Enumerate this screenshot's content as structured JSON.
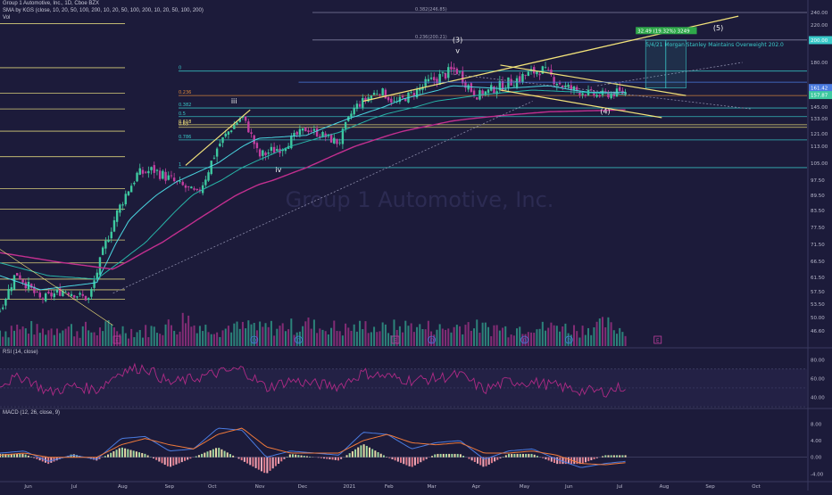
{
  "header": {
    "title": "Group 1 Automotive, Inc., 1D, Cboe BZX",
    "sma_line": "SMA by KGS (close, 10, 20, 50, 100, 200, 10, 20, 50, 100, 200, 10, 20, 50, 100, 200)",
    "vol_label": "Vol"
  },
  "watermark": "Group 1 Automotive, Inc.",
  "colors": {
    "background": "#1c1b3a",
    "up_candle": "#3ec9a0",
    "down_candle": "#c23fa0",
    "trendline": "#f3e37a",
    "fib_line": "#d8cf7a",
    "teal_line": "#39c9c9",
    "blue_line": "#4a7be0",
    "sma_teal": "#27b5a8",
    "sma_cyan": "#4ad6e0",
    "sma_magenta": "#c22f8f",
    "rsi_line": "#b02a86",
    "macd_line": "#4a7be0",
    "signal_line": "#f07a3a"
  },
  "chart_data": [
    {
      "type": "candlestick",
      "x_ticks": [
        "Jun",
        "Jul",
        "Aug",
        "Sep",
        "Oct",
        "Nov",
        "Dec",
        "2021",
        "Feb",
        "Mar",
        "Apr",
        "May",
        "Jun",
        "Jul",
        "Aug",
        "Sep",
        "Oct"
      ],
      "y_ticks": [
        46.6,
        50.0,
        53.5,
        57.5,
        61.5,
        66.5,
        71.5,
        77.5,
        83.5,
        89.5,
        97.5,
        105.0,
        113.0,
        121.0,
        133.0,
        145.0,
        160.0,
        180.0,
        200.0,
        220.0,
        240.0
      ],
      "y_scale": "log",
      "price_labels": [
        {
          "value": 200.0,
          "text": "200.00",
          "color": "#39c9c9"
        },
        {
          "value": 161.42,
          "text": "161.42",
          "color": "#4a7be0"
        },
        {
          "value": 157.87,
          "text": "157.87",
          "color": "#3ec9a0"
        }
      ],
      "key_prices": [
        {
          "t": 0.0,
          "v": 52
        },
        {
          "t": 0.02,
          "v": 63
        },
        {
          "t": 0.05,
          "v": 55
        },
        {
          "t": 0.08,
          "v": 58
        },
        {
          "t": 0.11,
          "v": 55
        },
        {
          "t": 0.14,
          "v": 79
        },
        {
          "t": 0.17,
          "v": 100
        },
        {
          "t": 0.19,
          "v": 102
        },
        {
          "t": 0.21,
          "v": 98
        },
        {
          "t": 0.245,
          "v": 90
        },
        {
          "t": 0.27,
          "v": 113
        },
        {
          "t": 0.3,
          "v": 135
        },
        {
          "t": 0.32,
          "v": 108
        },
        {
          "t": 0.35,
          "v": 113
        },
        {
          "t": 0.38,
          "v": 125
        },
        {
          "t": 0.42,
          "v": 115
        },
        {
          "t": 0.44,
          "v": 145
        },
        {
          "t": 0.47,
          "v": 160
        },
        {
          "t": 0.49,
          "v": 148
        },
        {
          "t": 0.53,
          "v": 165
        },
        {
          "t": 0.565,
          "v": 175
        },
        {
          "t": 0.59,
          "v": 155
        },
        {
          "t": 0.63,
          "v": 165
        },
        {
          "t": 0.67,
          "v": 175
        },
        {
          "t": 0.7,
          "v": 162
        },
        {
          "t": 0.74,
          "v": 155
        },
        {
          "t": 0.77,
          "v": 158
        },
        {
          "t": 0.775,
          "v": 157.87
        }
      ],
      "sma_series": [
        {
          "key_points": [
            [
              0.0,
              62
            ],
            [
              0.05,
              58
            ],
            [
              0.12,
              60
            ],
            [
              0.16,
              80
            ],
            [
              0.22,
              97
            ],
            [
              0.27,
              105
            ],
            [
              0.32,
              118
            ],
            [
              0.38,
              120
            ],
            [
              0.44,
              135
            ],
            [
              0.5,
              152
            ],
            [
              0.56,
              163
            ],
            [
              0.62,
              161
            ],
            [
              0.68,
              163
            ],
            [
              0.73,
              158
            ],
            [
              0.775,
              158
            ]
          ],
          "color": "#4ad6e0"
        },
        {
          "key_points": [
            [
              0.0,
              66
            ],
            [
              0.06,
              62
            ],
            [
              0.12,
              61
            ],
            [
              0.18,
              72
            ],
            [
              0.24,
              90
            ],
            [
              0.3,
              103
            ],
            [
              0.36,
              113
            ],
            [
              0.42,
              122
            ],
            [
              0.48,
              138
            ],
            [
              0.54,
              150
            ],
            [
              0.6,
              156
            ],
            [
              0.66,
              160
            ],
            [
              0.72,
              158
            ],
            [
              0.775,
              156
            ]
          ],
          "color": "#27b5a8"
        },
        {
          "key_points": [
            [
              0.0,
              69
            ],
            [
              0.08,
              66
            ],
            [
              0.14,
              64
            ],
            [
              0.2,
              72
            ],
            [
              0.26,
              83
            ],
            [
              0.32,
              95
            ],
            [
              0.38,
              103
            ],
            [
              0.44,
              113
            ],
            [
              0.5,
              123
            ],
            [
              0.56,
              131
            ],
            [
              0.62,
              136
            ],
            [
              0.68,
              140
            ],
            [
              0.73,
              141
            ],
            [
              0.775,
              142
            ]
          ],
          "color": "#c22f8f"
        }
      ],
      "annotations": [
        {
          "text": "(3)",
          "t": 0.567,
          "v": 198
        },
        {
          "text": "v",
          "t": 0.567,
          "v": 188
        },
        {
          "text": "(4)",
          "t": 0.75,
          "v": 138
        },
        {
          "text": "(5)",
          "t": 0.89,
          "v": 213
        },
        {
          "text": "iii",
          "t": 0.29,
          "v": 148
        },
        {
          "text": "iv",
          "t": 0.345,
          "v": 101
        },
        {
          "text": "5/4/21 Morgan Stanley Maintains Overweight 202.0",
          "t": 0.8,
          "v": 194
        },
        {
          "text": "32.49 (19.32%) 3249",
          "t": 0.79,
          "v": 210
        }
      ],
      "fib_levels": [
        {
          "label": "0",
          "value": 173.5
        },
        {
          "label": "0.236",
          "value": 155
        },
        {
          "label": "0.382",
          "value": 144
        },
        {
          "label": "0.5",
          "value": 135
        },
        {
          "label": "0.618",
          "value": 128
        },
        {
          "label": "0.65",
          "value": 126
        },
        {
          "label": "0.786",
          "value": 117
        },
        {
          "label": "1",
          "value": 103
        },
        {
          "label": "0.236(200.21)",
          "value": 200.2
        },
        {
          "label": "0.382(246.85)",
          "value": 245
        }
      ]
    },
    {
      "type": "bar",
      "title": "Vol",
      "description_values": "volume histogram",
      "values": [
        0.35,
        0.5,
        0.4,
        0.45,
        0.3,
        0.4,
        0.55,
        0.45,
        0.35,
        0.4,
        0.3,
        0.5,
        0.45,
        0.4,
        0.35,
        0.3,
        0.4,
        0.45,
        0.6,
        0.5,
        0.95,
        0.6,
        0.45,
        0.5,
        0.4,
        0.55,
        0.45,
        0.6,
        0.4,
        0.5,
        0.45,
        0.55,
        0.5,
        0.7,
        0.55,
        0.45,
        0.5,
        0.4,
        0.45,
        0.5,
        0.55,
        0.45,
        0.4,
        0.5,
        0.55,
        0.6,
        0.45,
        0.5,
        0.4,
        0.45,
        0.55,
        0.65,
        0.5,
        0.45,
        0.5,
        0.4,
        0.45,
        0.5,
        0.55,
        0.45,
        0.5,
        0.6,
        0.45,
        0.4,
        0.5,
        0.55,
        0.65,
        0.45,
        0.4
      ]
    },
    {
      "type": "line",
      "title": "RSI (14, close)",
      "y_ticks": [
        80.0,
        60.0,
        40.0
      ],
      "guides": [
        70,
        50,
        30
      ],
      "key_points": [
        [
          0.0,
          55
        ],
        [
          0.03,
          62
        ],
        [
          0.06,
          45
        ],
        [
          0.09,
          52
        ],
        [
          0.12,
          48
        ],
        [
          0.15,
          68
        ],
        [
          0.18,
          72
        ],
        [
          0.21,
          55
        ],
        [
          0.24,
          60
        ],
        [
          0.27,
          66
        ],
        [
          0.3,
          70
        ],
        [
          0.33,
          50
        ],
        [
          0.36,
          58
        ],
        [
          0.39,
          54
        ],
        [
          0.42,
          52
        ],
        [
          0.45,
          66
        ],
        [
          0.48,
          62
        ],
        [
          0.51,
          58
        ],
        [
          0.54,
          60
        ],
        [
          0.57,
          64
        ],
        [
          0.6,
          48
        ],
        [
          0.63,
          57
        ],
        [
          0.66,
          56
        ],
        [
          0.69,
          52
        ],
        [
          0.72,
          47
        ],
        [
          0.75,
          46
        ],
        [
          0.775,
          52
        ]
      ]
    },
    {
      "type": "line",
      "title": "MACD (12, 26, close, 9)",
      "y_ticks": [
        8.0,
        4.0,
        0.0,
        -4.0
      ],
      "macd_key_points": [
        [
          0.0,
          1.0
        ],
        [
          0.03,
          1.5
        ],
        [
          0.06,
          -1.0
        ],
        [
          0.09,
          0.5
        ],
        [
          0.12,
          -0.5
        ],
        [
          0.15,
          4.5
        ],
        [
          0.18,
          5.0
        ],
        [
          0.21,
          1.5
        ],
        [
          0.24,
          2.0
        ],
        [
          0.27,
          7.0
        ],
        [
          0.3,
          6.5
        ],
        [
          0.33,
          0.0
        ],
        [
          0.36,
          1.5
        ],
        [
          0.39,
          1.0
        ],
        [
          0.42,
          0.5
        ],
        [
          0.45,
          6.0
        ],
        [
          0.48,
          5.5
        ],
        [
          0.51,
          2.0
        ],
        [
          0.54,
          3.5
        ],
        [
          0.57,
          4.0
        ],
        [
          0.6,
          -0.5
        ],
        [
          0.63,
          1.5
        ],
        [
          0.66,
          2.0
        ],
        [
          0.69,
          -0.5
        ],
        [
          0.72,
          -2.5
        ],
        [
          0.75,
          -1.5
        ],
        [
          0.775,
          -1.0
        ]
      ],
      "signal_key_points": [
        [
          0.0,
          0.5
        ],
        [
          0.03,
          1.0
        ],
        [
          0.06,
          0.0
        ],
        [
          0.09,
          0.0
        ],
        [
          0.12,
          0.0
        ],
        [
          0.15,
          3.0
        ],
        [
          0.18,
          4.5
        ],
        [
          0.21,
          3.0
        ],
        [
          0.24,
          2.0
        ],
        [
          0.27,
          5.5
        ],
        [
          0.3,
          7.0
        ],
        [
          0.33,
          2.5
        ],
        [
          0.36,
          1.0
        ],
        [
          0.39,
          1.0
        ],
        [
          0.42,
          1.0
        ],
        [
          0.45,
          4.0
        ],
        [
          0.48,
          5.5
        ],
        [
          0.51,
          3.5
        ],
        [
          0.54,
          3.0
        ],
        [
          0.57,
          3.5
        ],
        [
          0.6,
          1.0
        ],
        [
          0.63,
          1.0
        ],
        [
          0.66,
          1.5
        ],
        [
          0.69,
          0.5
        ],
        [
          0.72,
          -1.5
        ],
        [
          0.75,
          -1.8
        ],
        [
          0.775,
          -1.3
        ]
      ]
    }
  ]
}
